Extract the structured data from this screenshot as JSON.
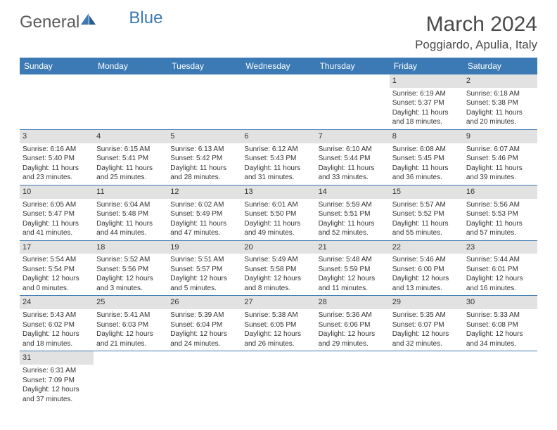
{
  "logo": {
    "general": "General",
    "blue": "Blue"
  },
  "title": "March 2024",
  "location": "Poggiardo, Apulia, Italy",
  "colors": {
    "header_bg": "#3b7ab5",
    "header_text": "#ffffff",
    "daynum_bg": "#e2e2e2",
    "text": "#333333",
    "logo_gray": "#5a5a5a",
    "logo_blue": "#3b7ab5",
    "border": "#3b7ab5",
    "background": "#ffffff"
  },
  "day_names": [
    "Sunday",
    "Monday",
    "Tuesday",
    "Wednesday",
    "Thursday",
    "Friday",
    "Saturday"
  ],
  "weeks": [
    [
      null,
      null,
      null,
      null,
      null,
      {
        "n": "1",
        "sr": "Sunrise: 6:19 AM",
        "ss": "Sunset: 5:37 PM",
        "dl1": "Daylight: 11 hours",
        "dl2": "and 18 minutes."
      },
      {
        "n": "2",
        "sr": "Sunrise: 6:18 AM",
        "ss": "Sunset: 5:38 PM",
        "dl1": "Daylight: 11 hours",
        "dl2": "and 20 minutes."
      }
    ],
    [
      {
        "n": "3",
        "sr": "Sunrise: 6:16 AM",
        "ss": "Sunset: 5:40 PM",
        "dl1": "Daylight: 11 hours",
        "dl2": "and 23 minutes."
      },
      {
        "n": "4",
        "sr": "Sunrise: 6:15 AM",
        "ss": "Sunset: 5:41 PM",
        "dl1": "Daylight: 11 hours",
        "dl2": "and 25 minutes."
      },
      {
        "n": "5",
        "sr": "Sunrise: 6:13 AM",
        "ss": "Sunset: 5:42 PM",
        "dl1": "Daylight: 11 hours",
        "dl2": "and 28 minutes."
      },
      {
        "n": "6",
        "sr": "Sunrise: 6:12 AM",
        "ss": "Sunset: 5:43 PM",
        "dl1": "Daylight: 11 hours",
        "dl2": "and 31 minutes."
      },
      {
        "n": "7",
        "sr": "Sunrise: 6:10 AM",
        "ss": "Sunset: 5:44 PM",
        "dl1": "Daylight: 11 hours",
        "dl2": "and 33 minutes."
      },
      {
        "n": "8",
        "sr": "Sunrise: 6:08 AM",
        "ss": "Sunset: 5:45 PM",
        "dl1": "Daylight: 11 hours",
        "dl2": "and 36 minutes."
      },
      {
        "n": "9",
        "sr": "Sunrise: 6:07 AM",
        "ss": "Sunset: 5:46 PM",
        "dl1": "Daylight: 11 hours",
        "dl2": "and 39 minutes."
      }
    ],
    [
      {
        "n": "10",
        "sr": "Sunrise: 6:05 AM",
        "ss": "Sunset: 5:47 PM",
        "dl1": "Daylight: 11 hours",
        "dl2": "and 41 minutes."
      },
      {
        "n": "11",
        "sr": "Sunrise: 6:04 AM",
        "ss": "Sunset: 5:48 PM",
        "dl1": "Daylight: 11 hours",
        "dl2": "and 44 minutes."
      },
      {
        "n": "12",
        "sr": "Sunrise: 6:02 AM",
        "ss": "Sunset: 5:49 PM",
        "dl1": "Daylight: 11 hours",
        "dl2": "and 47 minutes."
      },
      {
        "n": "13",
        "sr": "Sunrise: 6:01 AM",
        "ss": "Sunset: 5:50 PM",
        "dl1": "Daylight: 11 hours",
        "dl2": "and 49 minutes."
      },
      {
        "n": "14",
        "sr": "Sunrise: 5:59 AM",
        "ss": "Sunset: 5:51 PM",
        "dl1": "Daylight: 11 hours",
        "dl2": "and 52 minutes."
      },
      {
        "n": "15",
        "sr": "Sunrise: 5:57 AM",
        "ss": "Sunset: 5:52 PM",
        "dl1": "Daylight: 11 hours",
        "dl2": "and 55 minutes."
      },
      {
        "n": "16",
        "sr": "Sunrise: 5:56 AM",
        "ss": "Sunset: 5:53 PM",
        "dl1": "Daylight: 11 hours",
        "dl2": "and 57 minutes."
      }
    ],
    [
      {
        "n": "17",
        "sr": "Sunrise: 5:54 AM",
        "ss": "Sunset: 5:54 PM",
        "dl1": "Daylight: 12 hours",
        "dl2": "and 0 minutes."
      },
      {
        "n": "18",
        "sr": "Sunrise: 5:52 AM",
        "ss": "Sunset: 5:56 PM",
        "dl1": "Daylight: 12 hours",
        "dl2": "and 3 minutes."
      },
      {
        "n": "19",
        "sr": "Sunrise: 5:51 AM",
        "ss": "Sunset: 5:57 PM",
        "dl1": "Daylight: 12 hours",
        "dl2": "and 5 minutes."
      },
      {
        "n": "20",
        "sr": "Sunrise: 5:49 AM",
        "ss": "Sunset: 5:58 PM",
        "dl1": "Daylight: 12 hours",
        "dl2": "and 8 minutes."
      },
      {
        "n": "21",
        "sr": "Sunrise: 5:48 AM",
        "ss": "Sunset: 5:59 PM",
        "dl1": "Daylight: 12 hours",
        "dl2": "and 11 minutes."
      },
      {
        "n": "22",
        "sr": "Sunrise: 5:46 AM",
        "ss": "Sunset: 6:00 PM",
        "dl1": "Daylight: 12 hours",
        "dl2": "and 13 minutes."
      },
      {
        "n": "23",
        "sr": "Sunrise: 5:44 AM",
        "ss": "Sunset: 6:01 PM",
        "dl1": "Daylight: 12 hours",
        "dl2": "and 16 minutes."
      }
    ],
    [
      {
        "n": "24",
        "sr": "Sunrise: 5:43 AM",
        "ss": "Sunset: 6:02 PM",
        "dl1": "Daylight: 12 hours",
        "dl2": "and 18 minutes."
      },
      {
        "n": "25",
        "sr": "Sunrise: 5:41 AM",
        "ss": "Sunset: 6:03 PM",
        "dl1": "Daylight: 12 hours",
        "dl2": "and 21 minutes."
      },
      {
        "n": "26",
        "sr": "Sunrise: 5:39 AM",
        "ss": "Sunset: 6:04 PM",
        "dl1": "Daylight: 12 hours",
        "dl2": "and 24 minutes."
      },
      {
        "n": "27",
        "sr": "Sunrise: 5:38 AM",
        "ss": "Sunset: 6:05 PM",
        "dl1": "Daylight: 12 hours",
        "dl2": "and 26 minutes."
      },
      {
        "n": "28",
        "sr": "Sunrise: 5:36 AM",
        "ss": "Sunset: 6:06 PM",
        "dl1": "Daylight: 12 hours",
        "dl2": "and 29 minutes."
      },
      {
        "n": "29",
        "sr": "Sunrise: 5:35 AM",
        "ss": "Sunset: 6:07 PM",
        "dl1": "Daylight: 12 hours",
        "dl2": "and 32 minutes."
      },
      {
        "n": "30",
        "sr": "Sunrise: 5:33 AM",
        "ss": "Sunset: 6:08 PM",
        "dl1": "Daylight: 12 hours",
        "dl2": "and 34 minutes."
      }
    ],
    [
      {
        "n": "31",
        "sr": "Sunrise: 6:31 AM",
        "ss": "Sunset: 7:09 PM",
        "dl1": "Daylight: 12 hours",
        "dl2": "and 37 minutes."
      },
      null,
      null,
      null,
      null,
      null,
      null
    ]
  ]
}
